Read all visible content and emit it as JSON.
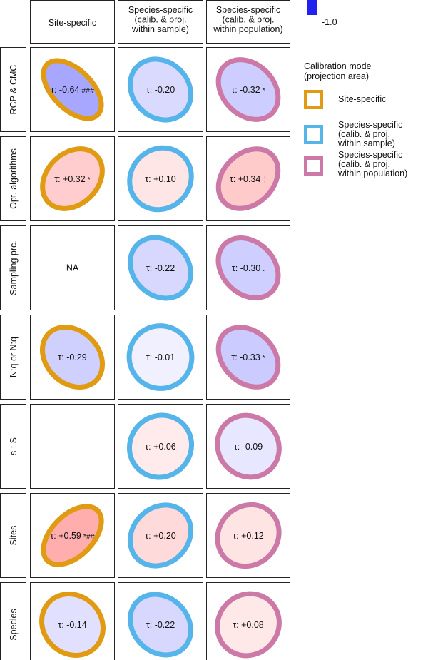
{
  "chart_data": {
    "type": "heatmap",
    "columns": [
      "Site-specific",
      "Species-specific\n(calib. & proj.\nwithin sample)",
      "Species-specific\n(calib. & proj.\nwithin population)"
    ],
    "rows": [
      "RCP & CMC",
      "Opt. algorithms",
      "Sampling prc.",
      "N:q or N̅:q",
      "s : S",
      "Sites",
      "Species"
    ],
    "cells": [
      [
        {
          "tau": -0.64,
          "label": "τ: -0.64",
          "sig": "###"
        },
        {
          "tau": -0.2,
          "label": "τ: -0.20",
          "sig": ""
        },
        {
          "tau": -0.32,
          "label": "τ: -0.32",
          "sig": "*"
        }
      ],
      [
        {
          "tau": 0.32,
          "label": "τ: +0.32",
          "sig": "*"
        },
        {
          "tau": 0.1,
          "label": "τ: +0.10",
          "sig": ""
        },
        {
          "tau": 0.34,
          "label": "τ: +0.34",
          "sig": "‡"
        }
      ],
      [
        {
          "tau": null,
          "label": "NA",
          "sig": ""
        },
        {
          "tau": -0.22,
          "label": "τ: -0.22",
          "sig": ""
        },
        {
          "tau": -0.3,
          "label": "τ: -0.30",
          "sig": "."
        }
      ],
      [
        {
          "tau": -0.29,
          "label": "τ: -0.29",
          "sig": ""
        },
        {
          "tau": -0.01,
          "label": "τ: -0.01",
          "sig": ""
        },
        {
          "tau": -0.33,
          "label": "τ: -0.33",
          "sig": "*"
        }
      ],
      [
        null,
        {
          "tau": 0.06,
          "label": "τ: +0.06",
          "sig": ""
        },
        {
          "tau": -0.09,
          "label": "τ: -0.09",
          "sig": ""
        }
      ],
      [
        {
          "tau": 0.59,
          "label": "τ: +0.59",
          "sig": "*##"
        },
        {
          "tau": 0.2,
          "label": "τ: +0.20",
          "sig": ""
        },
        {
          "tau": 0.12,
          "label": "τ: +0.12",
          "sig": ""
        }
      ],
      [
        {
          "tau": -0.14,
          "label": "τ: -0.14",
          "sig": ""
        },
        {
          "tau": -0.22,
          "label": "τ: -0.22",
          "sig": ""
        },
        {
          "tau": 0.08,
          "label": "τ: +0.08",
          "sig": ""
        }
      ]
    ],
    "color_scale_label": "-1.0",
    "colors": {
      "positive": "#ff2020",
      "negative": "#2020ff",
      "site_specific": "#e09b12",
      "species_within_sample": "#55b4e9",
      "species_within_population": "#cc79a7"
    }
  },
  "legend": {
    "title": "Calibration mode\n(projection area)",
    "items": [
      {
        "label": "Site-specific",
        "color": "#e09b12"
      },
      {
        "label": "Species-specific\n(calib. & proj.\nwithin sample)",
        "color": "#55b4e9"
      },
      {
        "label": "Species-specific\n(calib. & proj.\nwithin population)",
        "color": "#cc79a7"
      }
    ]
  }
}
